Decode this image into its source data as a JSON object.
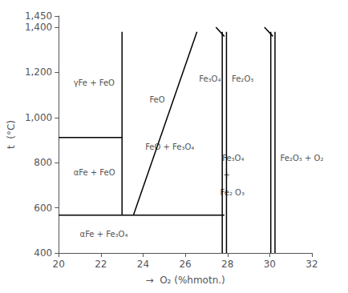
{
  "chart_data": {
    "type": "line",
    "xlabel": "→  O₂ (%hmotn.)",
    "ylabel": "t  (°C)",
    "xlim": [
      20,
      32
    ],
    "ylim": [
      400,
      1450
    ],
    "xticks": [
      20,
      22,
      24,
      26,
      28,
      30,
      32
    ],
    "yticks": [
      400,
      600,
      800,
      1000,
      1200,
      1400
    ],
    "grid": false,
    "color": "#000000",
    "series": [
      {
        "x": [
          23.0,
          23.0
        ],
        "values": [
          570,
          1380
        ]
      },
      {
        "x": [
          20.0,
          23.0
        ],
        "values": [
          912,
          912
        ]
      },
      {
        "x": [
          20.0,
          27.85
        ],
        "values": [
          568,
          568
        ]
      },
      {
        "x": [
          23.55,
          26.55
        ],
        "values": [
          570,
          1380
        ]
      },
      {
        "x": [
          27.75,
          27.75
        ],
        "values": [
          400,
          1380
        ]
      },
      {
        "x": [
          27.95,
          27.95
        ],
        "values": [
          400,
          1380
        ]
      },
      {
        "x": [
          30.05,
          30.05
        ],
        "values": [
          400,
          1380
        ]
      },
      {
        "x": [
          30.25,
          30.25
        ],
        "values": [
          400,
          1380
        ]
      },
      {
        "x": [
          27.45,
          27.85
        ],
        "values": [
          1400,
          1360
        ]
      },
      {
        "x": [
          29.75,
          30.15
        ],
        "values": [
          1400,
          1360
        ]
      }
    ],
    "annotations": [
      {
        "x": 20.7,
        "y": 1155,
        "text": "γFe + FeO"
      },
      {
        "x": 24.3,
        "y": 1080,
        "text": "FeO"
      },
      {
        "x": 20.7,
        "y": 755,
        "text": "αFe + FeO"
      },
      {
        "x": 24.1,
        "y": 870,
        "text": "FeO + Fe₃O₄"
      },
      {
        "x": 21.0,
        "y": 483,
        "text": "αFe + Fe₃O₄"
      },
      {
        "x": 28.2,
        "y": 1170,
        "text": "Fe₂O₃"
      },
      {
        "x": 27.75,
        "y": 820,
        "text": "Fe₃O₄"
      },
      {
        "x": 27.8,
        "y": 745,
        "text": "+"
      },
      {
        "x": 27.65,
        "y": 668,
        "text": "Fe₂ O₃"
      },
      {
        "x": 30.5,
        "y": 820,
        "text": "Fe₂O₃ + O₂"
      },
      {
        "x": 26.65,
        "y": 1170,
        "text": "Fe₃O₄"
      }
    ]
  }
}
